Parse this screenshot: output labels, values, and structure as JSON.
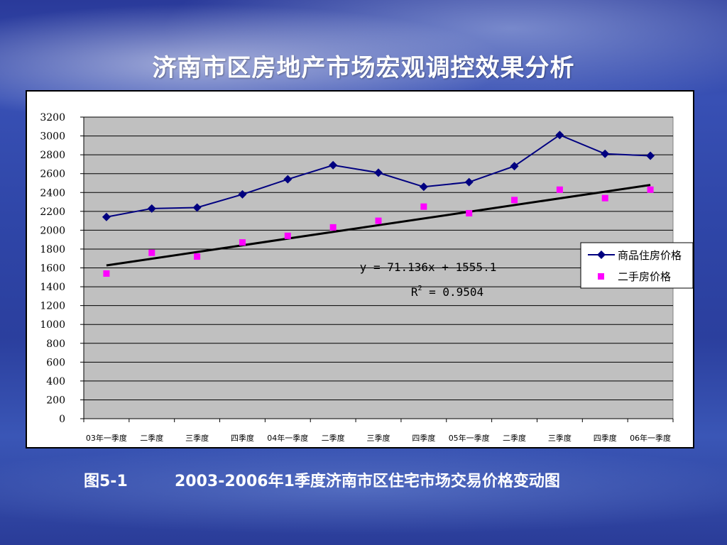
{
  "slide": {
    "title": "济南市区房地产市场宏观调控效果分析",
    "caption_number": "图5-1",
    "caption_text": "2003-2006年1季度济南市区住宅市场交易价格变动图"
  },
  "chart_data": {
    "type": "line",
    "categories": [
      "03年一季度",
      "二季度",
      "三季度",
      "四季度",
      "04年一季度",
      "二季度",
      "三季度",
      "四季度",
      "05年一季度",
      "二季度",
      "三季度",
      "四季度",
      "06年一季度"
    ],
    "series": [
      {
        "name": "商品住房价格",
        "kind": "line-marker",
        "marker": "diamond",
        "color": "#000080",
        "values": [
          2140,
          2230,
          2240,
          2380,
          2540,
          2690,
          2610,
          2460,
          2510,
          2680,
          3010,
          2810,
          2790
        ]
      },
      {
        "name": "二手房价格",
        "kind": "marker-only",
        "marker": "square",
        "color": "#ff00ff",
        "values": [
          1540,
          1760,
          1720,
          1870,
          1940,
          2030,
          2100,
          2250,
          2180,
          2320,
          2430,
          2340,
          2430
        ]
      }
    ],
    "trendline": {
      "equation": "y = 71.136x + 1555.1",
      "r2": "R2 = 0.9504",
      "r2_label": "R",
      "r2_sup": "2",
      "r2_value": " = 0.9504",
      "slope": 71.136,
      "intercept": 1555.1,
      "color": "#000000"
    },
    "ylim": [
      0,
      3200
    ],
    "ytick_step": 200,
    "grid": true,
    "plot_background": "#c0c0c0",
    "legend_position": "right",
    "title": "",
    "xlabel": "",
    "ylabel": ""
  }
}
